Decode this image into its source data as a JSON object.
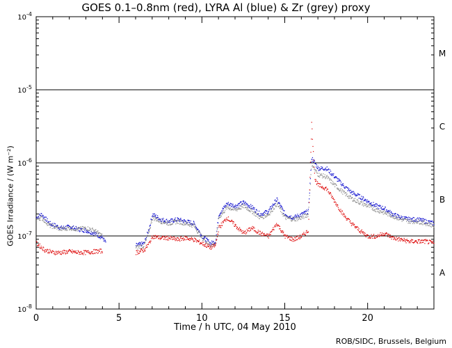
{
  "chart_data": {
    "type": "scatter",
    "title": "GOES 0.1–0.8nm (red), LYRA Al (blue) & Zr (grey) proxy",
    "xlabel": "Time / h UTC, 04 May 2010",
    "ylabel": "GOES Irradiance / (W m⁻²)",
    "credit": "ROB/SIDC, Brussels, Belgium",
    "xlim": [
      0,
      24
    ],
    "ylim": [
      1e-08,
      0.0001
    ],
    "yscale": "log",
    "xticks": [
      0,
      5,
      10,
      15,
      20
    ],
    "xtick_labels": [
      "0",
      "5",
      "10",
      "15",
      "20"
    ],
    "yticks": [
      1e-08,
      1e-07,
      1e-06,
      1e-05,
      0.0001
    ],
    "ytick_labels": [
      {
        "base": "10",
        "exp": "-8"
      },
      {
        "base": "10",
        "exp": "-7"
      },
      {
        "base": "10",
        "exp": "-6"
      },
      {
        "base": "10",
        "exp": "-5"
      },
      {
        "base": "10",
        "exp": "-4"
      }
    ],
    "reference_lines": [
      1e-07,
      1e-06,
      1e-05
    ],
    "flare_classes": [
      {
        "label": "A",
        "value": 3.2e-08
      },
      {
        "label": "B",
        "value": 3.2e-07
      },
      {
        "label": "C",
        "value": 3.2e-06
      },
      {
        "label": "M",
        "value": 3.2e-05
      }
    ],
    "series": [
      {
        "name": "LYRA Al proxy",
        "color": "#0000cc",
        "x": [
          0,
          0.3,
          0.8,
          1.5,
          2,
          2.5,
          3,
          3.5,
          4,
          4.2,
          5,
          5.5,
          6,
          6.5,
          6.8,
          7,
          7.5,
          8,
          8.5,
          9,
          9.5,
          10,
          10.5,
          10.8,
          11,
          11.5,
          12,
          12.5,
          13,
          13.5,
          14,
          14.5,
          15,
          15.5,
          16,
          16.4,
          16.6,
          16.8,
          17,
          17.5,
          18,
          18.5,
          19,
          19.5,
          20,
          20.5,
          21,
          21.5,
          22,
          22.5,
          23,
          23.5,
          24
        ],
        "y": [
          1.8e-07,
          2e-07,
          1.5e-07,
          1.3e-07,
          1.35e-07,
          1.25e-07,
          1.2e-07,
          1.1e-07,
          9.5e-08,
          8e-08,
          null,
          null,
          7.5e-08,
          8e-08,
          1.3e-07,
          2e-07,
          1.7e-07,
          1.6e-07,
          1.7e-07,
          1.6e-07,
          1.5e-07,
          1e-07,
          8e-08,
          8.5e-08,
          2e-07,
          2.8e-07,
          2.6e-07,
          2.9e-07,
          2.5e-07,
          2e-07,
          2.2e-07,
          3.2e-07,
          2e-07,
          1.8e-07,
          2e-07,
          2.2e-07,
          1.2e-06,
          1e-06,
          8.5e-07,
          8.5e-07,
          6.5e-07,
          5e-07,
          4e-07,
          3.5e-07,
          3e-07,
          2.6e-07,
          2.4e-07,
          2e-07,
          1.8e-07,
          1.7e-07,
          1.7e-07,
          1.6e-07,
          1.5e-07
        ]
      },
      {
        "name": "LYRA Zr proxy",
        "color": "#888888",
        "x": [
          0,
          0.3,
          0.8,
          1.5,
          2,
          2.5,
          3,
          3.5,
          4,
          6,
          6.5,
          6.8,
          7,
          7.5,
          8,
          8.5,
          9,
          9.5,
          10,
          10.5,
          10.8,
          11,
          11.5,
          12,
          12.5,
          13,
          13.5,
          14,
          14.5,
          15,
          15.5,
          16,
          16.4,
          16.6,
          16.8,
          17,
          17.5,
          18,
          18.5,
          19,
          19.5,
          20,
          20.5,
          21,
          21.5,
          22,
          22.5,
          23,
          23.5,
          24
        ],
        "y": [
          1.7e-07,
          1.8e-07,
          1.4e-07,
          1.25e-07,
          1.3e-07,
          1.25e-07,
          1.3e-07,
          1.2e-07,
          1e-07,
          7e-08,
          7.5e-08,
          1.2e-07,
          1.8e-07,
          1.6e-07,
          1.5e-07,
          1.6e-07,
          1.5e-07,
          1.4e-07,
          9.5e-08,
          7.5e-08,
          8e-08,
          1.8e-07,
          2.5e-07,
          2.3e-07,
          2.6e-07,
          2.2e-07,
          1.8e-07,
          2e-07,
          2.8e-07,
          1.8e-07,
          1.7e-07,
          1.8e-07,
          2e-07,
          1e-06,
          8e-07,
          7e-07,
          6.5e-07,
          5e-07,
          4e-07,
          3.3e-07,
          2.9e-07,
          2.6e-07,
          2.3e-07,
          2.1e-07,
          1.9e-07,
          1.7e-07,
          1.6e-07,
          1.6e-07,
          1.5e-07,
          1.4e-07
        ]
      },
      {
        "name": "GOES 0.1–0.8nm",
        "color": "#dd0000",
        "x": [
          0,
          0.5,
          1,
          1.5,
          2,
          2.5,
          3,
          3.5,
          4,
          6,
          6.5,
          6.8,
          7,
          7.5,
          8,
          8.5,
          9,
          9.5,
          10,
          10.5,
          10.8,
          11,
          11.5,
          12,
          12.5,
          13,
          13.5,
          14,
          14.5,
          15,
          15.5,
          16,
          16.4,
          16.6,
          16.8,
          17,
          17.5,
          18,
          18.5,
          19,
          19.5,
          20,
          20.5,
          21,
          21.5,
          22,
          22.5,
          23,
          23.5,
          24
        ],
        "y": [
          8e-08,
          6.5e-08,
          6e-08,
          6e-08,
          6.2e-08,
          6e-08,
          6e-08,
          6.2e-08,
          6.3e-08,
          6e-08,
          6.5e-08,
          8e-08,
          1e-07,
          9.5e-08,
          9.5e-08,
          9e-08,
          9.5e-08,
          9e-08,
          8e-08,
          7e-08,
          7.5e-08,
          1.3e-07,
          1.8e-07,
          1.4e-07,
          1.1e-07,
          1.3e-07,
          1.1e-07,
          1e-07,
          1.5e-07,
          1e-07,
          9e-08,
          1e-07,
          1.2e-07,
          3.5e-06,
          6e-07,
          5e-07,
          4.5e-07,
          3e-07,
          2e-07,
          1.5e-07,
          1.2e-07,
          1e-07,
          1e-07,
          1.1e-07,
          9.5e-08,
          9e-08,
          8.5e-08,
          8.5e-08,
          8.5e-08,
          8e-08
        ]
      }
    ]
  }
}
